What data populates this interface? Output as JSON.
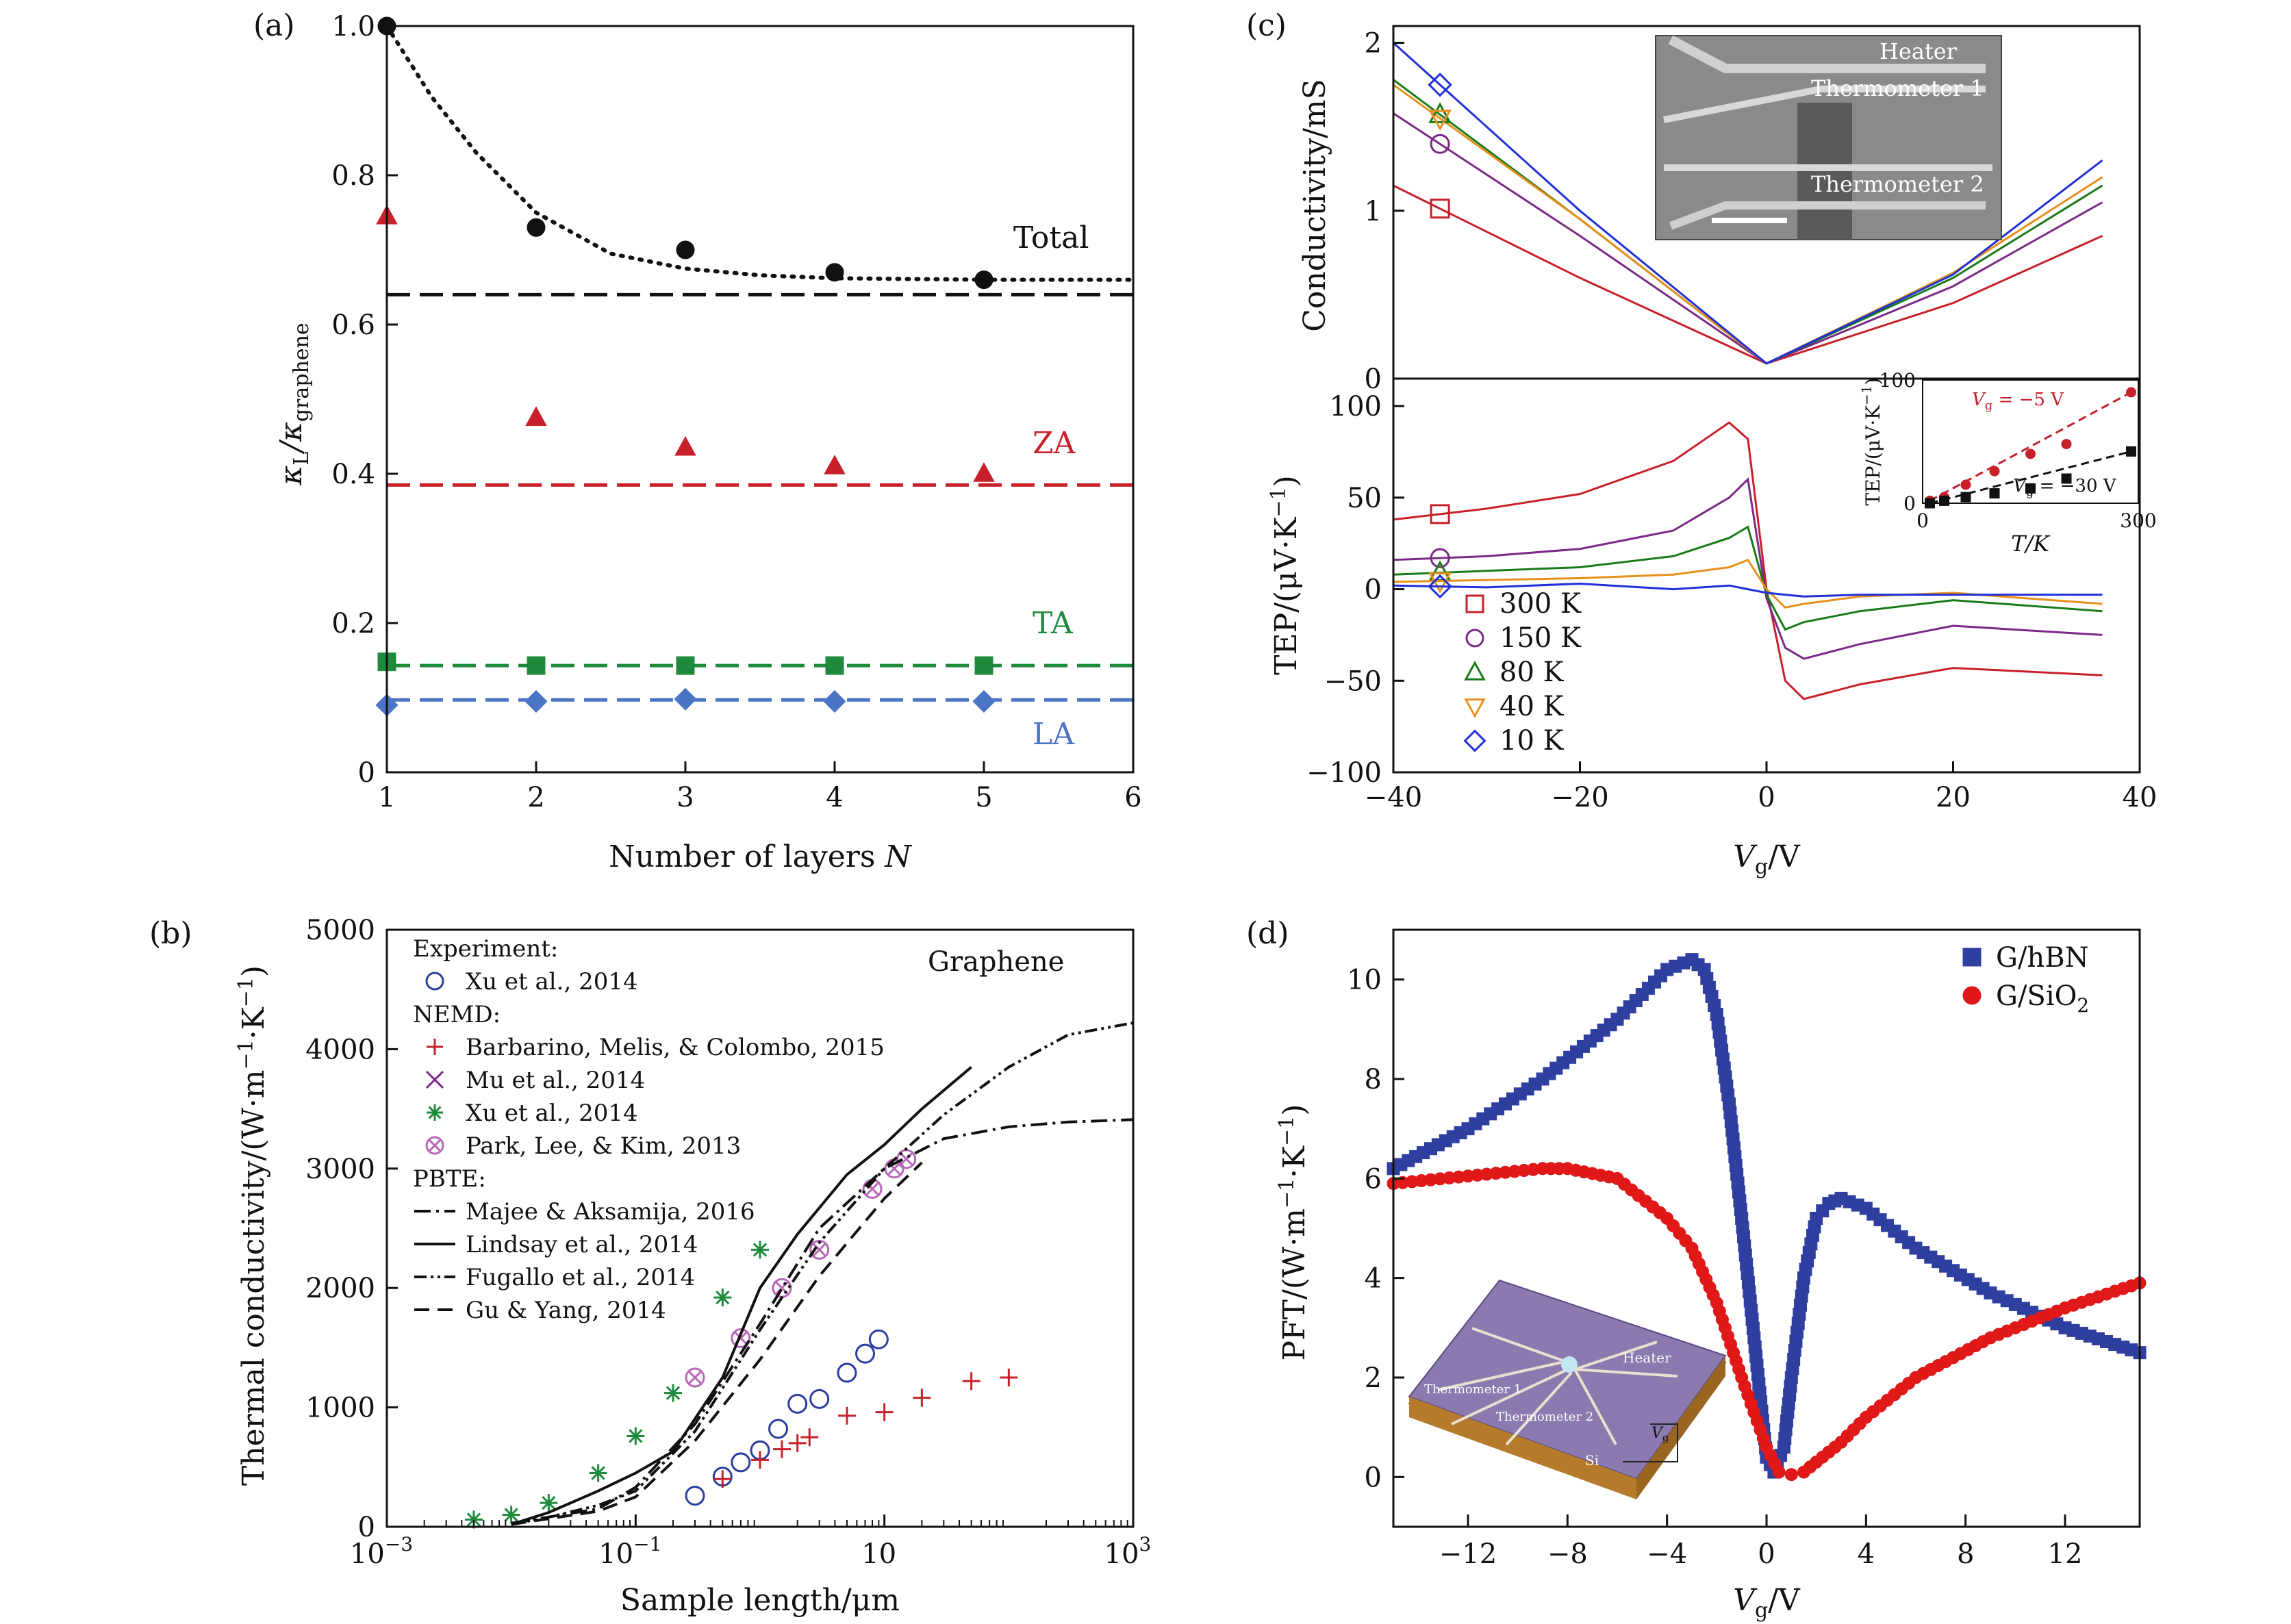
{
  "colors": {
    "black": "#111111",
    "red": "#c8202a",
    "green": "#1e8a3c",
    "blue": "#4a74c4",
    "purple": "#7a2a86",
    "orange": "#e8901c",
    "navy": "#2b3ea0",
    "pink": "#b868b8",
    "brightblue": "#2030d8",
    "darkgreen": "#1a7a1a",
    "pftblue": "#2f3f9f",
    "pftred": "#e01818"
  },
  "chart_data": [
    {
      "panel_label": "(a)",
      "type": "scatter",
      "xlabel": "Number of layers ",
      "xlabel_var": "N",
      "ylabel_main": "κ",
      "ylabel_sub1": "L",
      "ylabel_sep": "/κ",
      "ylabel_sub2": "graphene",
      "xlim": [
        1,
        6
      ],
      "ylim": [
        0,
        1.0
      ],
      "xticks": [
        "1",
        "2",
        "3",
        "4",
        "5",
        "6"
      ],
      "yticks": [
        "0",
        "0.2",
        "0.4",
        "0.6",
        "0.8",
        "1.0"
      ],
      "series": [
        {
          "name": "Total",
          "marker": "circle",
          "x": [
            1,
            2,
            3,
            4,
            5
          ],
          "y": [
            1.0,
            0.73,
            0.7,
            0.67,
            0.66
          ],
          "dashed_level": 0.64
        },
        {
          "name": "ZA",
          "marker": "triangle",
          "x": [
            1,
            2,
            3,
            4,
            5
          ],
          "y": [
            0.745,
            0.475,
            0.435,
            0.41,
            0.4
          ],
          "dashed_level": 0.385
        },
        {
          "name": "TA",
          "marker": "square",
          "x": [
            1,
            2,
            3,
            4,
            5
          ],
          "y": [
            0.148,
            0.143,
            0.143,
            0.143,
            0.143
          ],
          "dashed_level": 0.143
        },
        {
          "name": "LA",
          "marker": "diamond",
          "x": [
            1,
            2,
            3,
            4,
            5
          ],
          "y": [
            0.09,
            0.095,
            0.098,
            0.095,
            0.095
          ],
          "dashed_level": 0.097
        }
      ],
      "fit_curve": {
        "x": [
          1,
          1.3,
          1.6,
          2,
          2.5,
          3,
          3.5,
          4,
          5,
          6
        ],
        "y": [
          1.0,
          0.905,
          0.83,
          0.75,
          0.695,
          0.675,
          0.666,
          0.662,
          0.66,
          0.66
        ]
      }
    },
    {
      "panel_label": "(b)",
      "type": "scatter",
      "annotation": "Graphene",
      "xlabel": "Sample length/μm",
      "ylabel": "Thermal conductivity/(W·m",
      "ylabel_sup1": "−1",
      "ylabel_mid": "·K",
      "ylabel_sup2": "−1",
      "ylabel_end": ")",
      "x_scale": "log",
      "xlim": [
        0.001,
        1000
      ],
      "ylim": [
        0,
        5000
      ],
      "xticks": [
        0.001,
        0.1,
        10,
        1000
      ],
      "xtick_labels": [
        [
          "10",
          "−3"
        ],
        [
          "10",
          "−1"
        ],
        [
          "10",
          ""
        ],
        [
          "10",
          "3"
        ]
      ],
      "yticks": [
        "0",
        "1000",
        "2000",
        "3000",
        "4000",
        "5000"
      ],
      "legend_headers": [
        "Experiment:",
        "NEMD:",
        "PBTE:"
      ],
      "series": [
        {
          "name": "Xu et al., 2014",
          "group": "Experiment",
          "marker": "open-circle",
          "x": [
            0.3,
            0.5,
            0.7,
            1.0,
            1.4,
            2.0,
            3.0,
            5.0,
            7.0,
            9.0
          ],
          "y": [
            260,
            420,
            540,
            640,
            820,
            1030,
            1070,
            1290,
            1450,
            1570
          ]
        },
        {
          "name": "Barbarino, Melis, & Colombo, 2015",
          "group": "NEMD",
          "marker": "plus",
          "x": [
            0.5,
            1.0,
            1.5,
            2.0,
            2.5,
            5.0,
            10,
            20,
            50,
            100
          ],
          "y": [
            400,
            560,
            650,
            700,
            750,
            930,
            960,
            1080,
            1220,
            1250
          ]
        },
        {
          "name": "Mu et al., 2014",
          "group": "NEMD",
          "marker": "x",
          "x": [],
          "y": []
        },
        {
          "name": "Xu et al., 2014",
          "group": "NEMD",
          "marker": "asterisk",
          "x": [
            0.005,
            0.01,
            0.02,
            0.05,
            0.1,
            0.2,
            0.5,
            1.0
          ],
          "y": [
            60,
            100,
            200,
            450,
            760,
            1120,
            1920,
            2320
          ]
        },
        {
          "name": "Park, Lee, & Kim, 2013",
          "group": "NEMD",
          "marker": "circle-x",
          "x": [
            0.3,
            0.7,
            1.5,
            3.0,
            8.0,
            12,
            15
          ],
          "y": [
            1250,
            1580,
            2000,
            2320,
            2830,
            3000,
            3080
          ]
        },
        {
          "name": "Majee & Aksamija, 2016",
          "group": "PBTE",
          "line": "dashdot",
          "x": [
            0.01,
            0.05,
            0.1,
            0.3,
            1,
            3,
            10,
            30,
            100,
            300,
            1000
          ],
          "y": [
            30,
            150,
            330,
            860,
            1700,
            2500,
            3000,
            3250,
            3350,
            3390,
            3410
          ]
        },
        {
          "name": "Lindsay et al., 2014",
          "group": "PBTE",
          "line": "solid",
          "x": [
            0.01,
            0.02,
            0.05,
            0.1,
            0.2,
            0.5,
            1,
            2,
            5,
            10,
            20,
            50
          ],
          "y": [
            20,
            120,
            300,
            450,
            630,
            1250,
            2000,
            2450,
            2950,
            3200,
            3500,
            3850
          ]
        },
        {
          "name": "Fugallo et al., 2014",
          "group": "PBTE",
          "line": "dashdotdot",
          "x": [
            0.01,
            0.02,
            0.05,
            0.1,
            0.3,
            1,
            3,
            10,
            30,
            100,
            300,
            1000
          ],
          "y": [
            20,
            80,
            180,
            300,
            800,
            1650,
            2380,
            3000,
            3450,
            3850,
            4120,
            4220
          ]
        },
        {
          "name": "Gu & Yang, 2014",
          "group": "PBTE",
          "line": "dashed",
          "x": [
            0.01,
            0.05,
            0.1,
            0.3,
            1,
            3,
            10,
            20
          ],
          "y": [
            20,
            130,
            250,
            720,
            1400,
            2100,
            2750,
            3050
          ]
        }
      ]
    },
    {
      "panel_label": "(c)",
      "type": "line",
      "xlabel_var": "V",
      "xlabel_sub": "g",
      "xlabel_end": "/V",
      "xlim": [
        -40,
        40
      ],
      "xticks": [
        "−40",
        "−20",
        "0",
        "20",
        "40"
      ],
      "top": {
        "ylabel": "Conductivity/mS",
        "ylim": [
          0,
          2.1
        ],
        "yticks": [
          "0",
          "1",
          "2"
        ],
        "inset_labels": [
          "Heater",
          "Thermometer 1",
          "Thermometer 2"
        ],
        "series": [
          {
            "name": "300 K",
            "x": [
              -40,
              -20,
              0,
              20,
              36
            ],
            "y": [
              1.15,
              0.6,
              0.09,
              0.45,
              0.85
            ]
          },
          {
            "name": "150 K",
            "x": [
              -40,
              -20,
              0,
              20,
              36
            ],
            "y": [
              1.58,
              0.85,
              0.09,
              0.55,
              1.05
            ]
          },
          {
            "name": "80 K",
            "x": [
              -40,
              -20,
              0,
              20,
              36
            ],
            "y": [
              1.78,
              0.95,
              0.09,
              0.6,
              1.15
            ]
          },
          {
            "name": "40 K",
            "x": [
              -40,
              -20,
              0,
              20,
              36
            ],
            "y": [
              1.75,
              0.95,
              0.09,
              0.63,
              1.2
            ]
          },
          {
            "name": "10 K",
            "x": [
              -40,
              -20,
              0,
              20,
              36
            ],
            "y": [
              2.0,
              1.0,
              0.09,
              0.62,
              1.3
            ]
          }
        ]
      },
      "bottom": {
        "ylabel": "TEP/(μV·K",
        "ylabel_sup": "−1",
        "ylabel_end": ")",
        "ylim": [
          -100,
          115
        ],
        "yticks": [
          "−100",
          "−50",
          "0",
          "50",
          "100"
        ],
        "series": [
          {
            "name": "300 K",
            "marker": "square",
            "x": [
              -40,
              -30,
              -20,
              -10,
              -4,
              -2,
              0,
              2,
              4,
              10,
              20,
              36
            ],
            "y": [
              38,
              44,
              52,
              70,
              91,
              82,
              0,
              -50,
              -60,
              -52,
              -43,
              -47
            ]
          },
          {
            "name": "150 K",
            "marker": "circle",
            "x": [
              -40,
              -30,
              -20,
              -10,
              -4,
              -2,
              0,
              2,
              4,
              10,
              20,
              36
            ],
            "y": [
              16,
              18,
              22,
              32,
              50,
              60,
              -5,
              -32,
              -38,
              -30,
              -20,
              -25
            ]
          },
          {
            "name": "80 K",
            "marker": "triangle-up",
            "x": [
              -40,
              -30,
              -20,
              -10,
              -4,
              -2,
              0,
              2,
              4,
              10,
              20,
              36
            ],
            "y": [
              8,
              10,
              12,
              18,
              28,
              34,
              -3,
              -22,
              -18,
              -12,
              -6,
              -12
            ]
          },
          {
            "name": "40 K",
            "marker": "triangle-down",
            "x": [
              -40,
              -30,
              -20,
              -10,
              -4,
              -2,
              0,
              2,
              4,
              10,
              20,
              36
            ],
            "y": [
              4,
              5,
              6,
              8,
              12,
              16,
              0,
              -10,
              -8,
              -4,
              -2,
              -8
            ]
          },
          {
            "name": "10 K",
            "marker": "diamond",
            "x": [
              -40,
              -30,
              -20,
              -10,
              -4,
              -2,
              0,
              2,
              4,
              10,
              20,
              36
            ],
            "y": [
              2,
              1,
              3,
              0,
              2,
              0,
              -2,
              -3,
              -4,
              -3,
              -3,
              -3
            ]
          }
        ],
        "inset": {
          "xlabel": "T/K",
          "ylabel": "TEP/(μV·K",
          "ylabel_sup": "−1",
          "ylabel_end": ")",
          "xlim": [
            0,
            300
          ],
          "ylim": [
            0,
            100
          ],
          "xticks": [
            "0",
            "300"
          ],
          "yticks": [
            "0",
            "100"
          ],
          "series": [
            {
              "name_var": "V",
              "name_sub": "g",
              "name_end": " = −5 V",
              "x": [
                10,
                30,
                60,
                100,
                150,
                200,
                290
              ],
              "y": [
                2,
                5,
                15,
                26,
                40,
                48,
                90
              ]
            },
            {
              "name_var": "V",
              "name_sub": "g",
              "name_end": " = −30 V",
              "x": [
                10,
                30,
                60,
                100,
                150,
                200,
                290
              ],
              "y": [
                0,
                2,
                5,
                8,
                12,
                20,
                42
              ]
            }
          ]
        }
      }
    },
    {
      "panel_label": "(d)",
      "type": "scatter",
      "xlabel_var": "V",
      "xlabel_sub": "g",
      "xlabel_end": "/V",
      "ylabel": "PFT/(W·m",
      "ylabel_sup1": "−1",
      "ylabel_mid": "·K",
      "ylabel_sup2": "−1",
      "ylabel_end": ")",
      "xlim": [
        -15,
        15
      ],
      "ylim": [
        -1,
        11
      ],
      "xticks": [
        "−12",
        "−8",
        "−4",
        "0",
        "4",
        "8",
        "12"
      ],
      "xtick_values": [
        -12,
        -8,
        -4,
        0,
        4,
        8,
        12
      ],
      "yticks": [
        "0",
        "2",
        "4",
        "6",
        "8",
        "10"
      ],
      "series": [
        {
          "name": "G/hBN",
          "marker": "square",
          "x": [
            -15,
            -12,
            -9,
            -6,
            -4,
            -3,
            -2.5,
            -2,
            -1.5,
            -1,
            -0.5,
            0,
            0.3,
            0.7,
            1,
            1.5,
            2,
            2.5,
            3,
            4,
            6,
            9,
            12,
            15
          ],
          "y": [
            6.2,
            7.0,
            8.0,
            9.2,
            10.2,
            10.4,
            10.2,
            9.3,
            7.5,
            5.2,
            2.8,
            0.4,
            0.1,
            0.6,
            2.0,
            4.0,
            5.2,
            5.5,
            5.6,
            5.4,
            4.6,
            3.7,
            3.0,
            2.5
          ]
        },
        {
          "name": "G/SiO",
          "name_sub": "2",
          "marker": "circle",
          "x": [
            -15,
            -12,
            -9,
            -8,
            -6,
            -4,
            -3,
            -2,
            -1,
            0,
            0.5,
            1,
            1.5,
            2,
            3,
            4,
            6,
            9,
            12,
            15
          ],
          "y": [
            5.9,
            6.05,
            6.2,
            6.2,
            6.0,
            5.2,
            4.6,
            3.5,
            2.0,
            0.6,
            0.1,
            0.05,
            0.1,
            0.3,
            0.7,
            1.2,
            2.0,
            2.8,
            3.4,
            3.9
          ]
        }
      ],
      "inset_labels": [
        "SiO",
        "Heater",
        "Thermometer 1",
        "Thermometer 2",
        "Si"
      ],
      "inset_label_sub": "2",
      "inset_vg": "V",
      "inset_vg_sub": "g"
    }
  ]
}
